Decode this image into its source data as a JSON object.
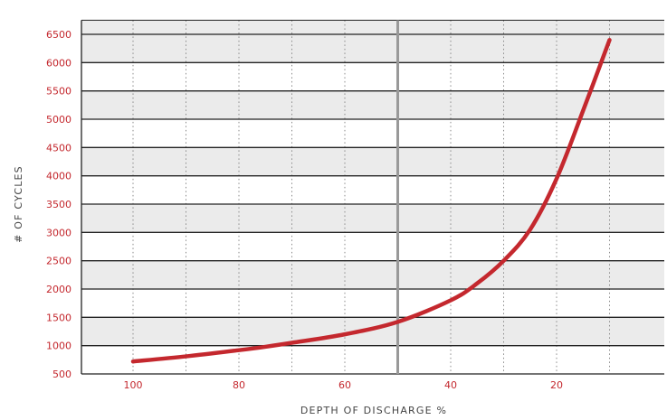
{
  "chart_data": {
    "type": "line",
    "xlabel": "DEPTH OF DISCHARGE %",
    "ylabel": "# OF CYCLES",
    "x_reversed": true,
    "xlim": [
      110,
      0
    ],
    "ylim": [
      500,
      6750
    ],
    "x_ticks": [
      "100",
      "80",
      "60",
      "40",
      "20"
    ],
    "y_ticks": [
      "6500",
      "6000",
      "5500",
      "5000",
      "4500",
      "4000",
      "3500",
      "3000",
      "2500",
      "2000",
      "1500",
      "1000",
      "500"
    ],
    "grid": "horizontal solid, vertical dotted",
    "reference_line_x": 50,
    "series": [
      {
        "color": "#c4282e",
        "x": [
          100,
          90,
          80,
          75,
          70,
          60,
          50,
          40,
          35,
          30,
          25,
          20,
          15,
          10
        ],
        "y": [
          720,
          810,
          920,
          980,
          1050,
          1200,
          1420,
          1800,
          2100,
          2500,
          3050,
          3950,
          5150,
          6400
        ]
      }
    ],
    "colors": {
      "line": "#c4282e",
      "band": "#ebebeb",
      "grid": "#222222",
      "reference": "#999999",
      "tick_text": "#c4282e"
    }
  }
}
